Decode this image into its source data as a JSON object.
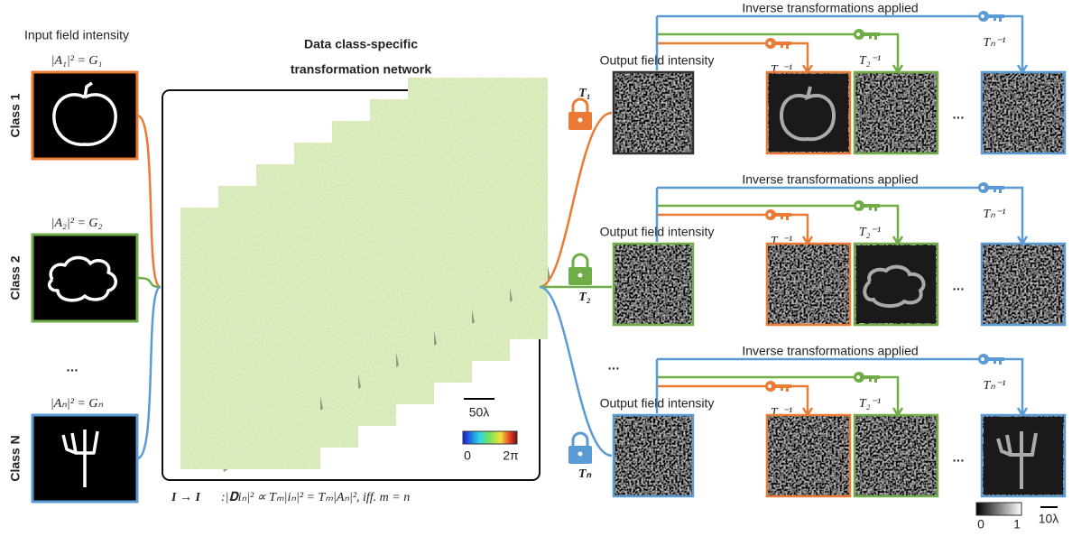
{
  "inputs": {
    "title": "Input field intensity",
    "items": [
      {
        "class": "Class 1",
        "equation": "|A₁|² = G₁"
      },
      {
        "class": "Class 2",
        "equation": "|A₂|² = G₂"
      },
      {
        "class": "Class N",
        "equation": "|Aₙ|² = Gₙ"
      }
    ],
    "ellipsis": "…"
  },
  "network": {
    "title_lines": [
      "Data class-specific",
      "transformation network"
    ],
    "scale_bar": "50λ",
    "colorbar_min": "0",
    "colorbar_max": "2π",
    "equation_lhs": "I → I",
    "equation_rhs": ":|𝐃iₙ|² ∝ Tₘ|iₙ|² = Tₘ|Aₙ|²,   iff. m = n"
  },
  "outputs": {
    "rows": [
      {
        "heading": "Inverse transformations applied",
        "label": "Output field intensity",
        "lock": "T₁",
        "keys": [
          "T₁⁻¹",
          "T₂⁻¹",
          "Tₙ⁻¹"
        ],
        "ellipsis": "…"
      },
      {
        "heading": "Inverse transformations applied",
        "label": "Output field intensity",
        "lock": "T₂",
        "keys": [
          "T₁⁻¹",
          "T₂⁻¹",
          "Tₙ⁻¹"
        ],
        "ellipsis": "…"
      },
      {
        "heading": "Inverse transformations applied",
        "label": "Output field intensity",
        "lock": "Tₙ",
        "keys": [
          "T₁⁻¹",
          "T₂⁻¹",
          "Tₙ⁻¹"
        ],
        "ellipsis": "…"
      }
    ],
    "row_ellipsis": "…",
    "colorbar_min": "0",
    "colorbar_max": "1",
    "scale_bar": "10λ"
  }
}
